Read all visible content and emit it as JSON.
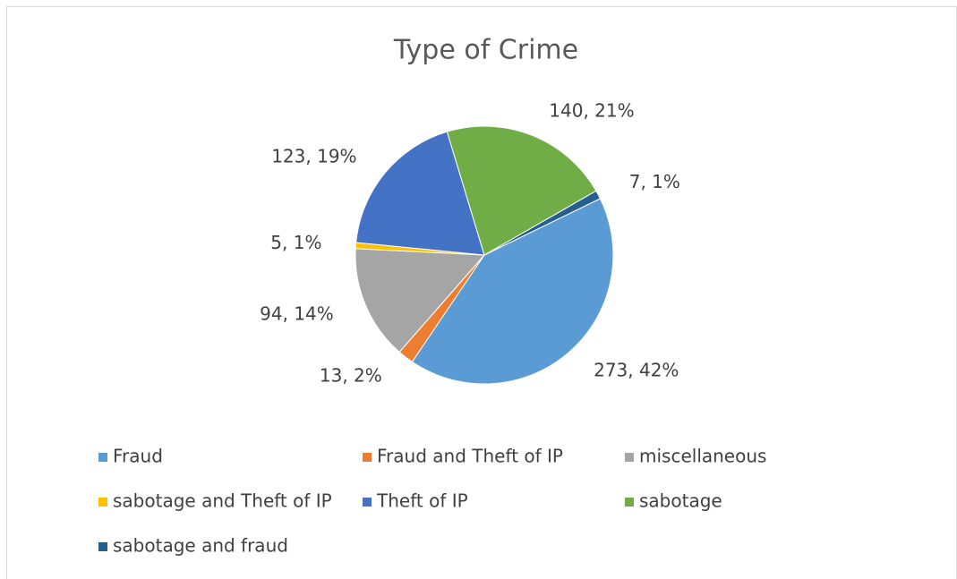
{
  "chart_data": {
    "type": "pie",
    "title": "Type of Crime",
    "categories": [
      "Fraud",
      "Fraud and Theft of IP",
      "miscellaneous",
      "sabotage and Theft of IP",
      "Theft of IP",
      "sabotage",
      "sabotage and fraud"
    ],
    "values": [
      273,
      13,
      94,
      5,
      123,
      140,
      7
    ],
    "value_labels": [
      "273, 42%",
      "13, 2%",
      "94, 14%",
      "5, 1%",
      "123, 19%",
      "140, 21%",
      "7, 1%"
    ],
    "colors": [
      "#5b9bd5",
      "#ed7d31",
      "#a5a5a5",
      "#ffc000",
      "#4472c4",
      "#70ad47",
      "#255e91"
    ],
    "legend": "bottom"
  }
}
